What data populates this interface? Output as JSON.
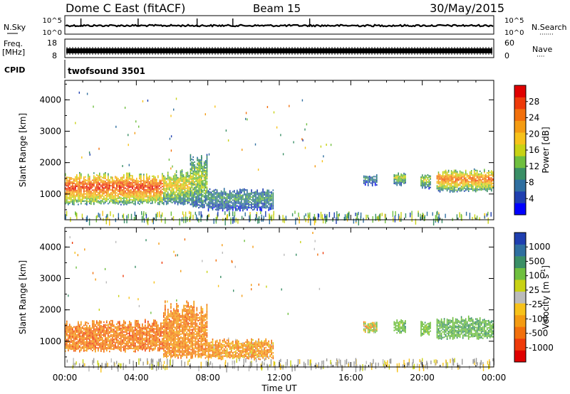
{
  "header": {
    "station": "Dome C East (fitACF)",
    "beam": "Beam 15",
    "date": "30/May/2015"
  },
  "strips": {
    "nsky": {
      "label": "N.Sky",
      "ticks_left": [
        "10^5",
        "10^0"
      ],
      "ticks_right": [
        "10^5",
        "10^0"
      ],
      "right_label": "N.Search",
      "right_dots": "·······"
    },
    "freq": {
      "label_top": "Freq.",
      "label_unit": "[MHz]",
      "ticks_left": [
        "18",
        "8"
      ],
      "ticks_right": [
        "60",
        "0"
      ],
      "right_label": "Nave",
      "right_dots": "····"
    },
    "cpid": {
      "label": "CPID",
      "value": "twofsound 3501"
    }
  },
  "colors": {
    "power_scale": [
      "#0000ff",
      "#1f3fb0",
      "#2f6fa0",
      "#3a8f66",
      "#6fbf3f",
      "#c8d214",
      "#f7c21a",
      "#f49b12",
      "#f2700c",
      "#ee3a0a",
      "#e00000"
    ],
    "velocity_scale": [
      "#e00000",
      "#ee3a0a",
      "#f2700c",
      "#f49b12",
      "#f7c21a",
      "#bbbbbb",
      "#c8d214",
      "#6fbf3f",
      "#3a8f66",
      "#2f6fa0",
      "#1f3fb0"
    ],
    "ground_scatter": "#999999"
  },
  "chart_data": [
    {
      "type": "heatmap",
      "name": "power",
      "ylabel": "Slant Range [km]",
      "xlabel": "Time UT",
      "x_ticks": [
        "00:00",
        "04:00",
        "08:00",
        "12:00",
        "16:00",
        "20:00",
        "00:00"
      ],
      "x_range_hours": [
        0,
        24
      ],
      "y_ticks": [
        1000,
        2000,
        3000,
        4000
      ],
      "y_range_km": [
        180,
        4620
      ],
      "colorbar": {
        "label": "Power [dB]",
        "ticks": [
          4,
          8,
          12,
          16,
          20,
          24,
          28
        ],
        "range": [
          0,
          32
        ]
      },
      "echo_regions": [
        {
          "t_start": 0.0,
          "t_end": 5.5,
          "r_low": 700,
          "r_high": 1700,
          "peak_value": 30
        },
        {
          "t_start": 5.5,
          "t_end": 7.0,
          "r_low": 700,
          "r_high": 1800,
          "peak_value": 20
        },
        {
          "t_start": 7.0,
          "t_end": 8.0,
          "r_low": 600,
          "r_high": 2300,
          "peak_value": 16
        },
        {
          "t_start": 8.0,
          "t_end": 11.7,
          "r_low": 500,
          "r_high": 1200,
          "peak_value": 10
        },
        {
          "t_start": 16.7,
          "t_end": 17.5,
          "r_low": 1300,
          "r_high": 1650,
          "peak_value": 8
        },
        {
          "t_start": 18.4,
          "t_end": 19.1,
          "r_low": 1300,
          "r_high": 1700,
          "peak_value": 16
        },
        {
          "t_start": 19.9,
          "t_end": 20.5,
          "r_low": 1200,
          "r_high": 1650,
          "peak_value": 16
        },
        {
          "t_start": 20.8,
          "t_end": 24.0,
          "r_low": 1100,
          "r_high": 1800,
          "peak_value": 26
        }
      ]
    },
    {
      "type": "heatmap",
      "name": "velocity",
      "ylabel": "Slant Range [km]",
      "xlabel": "Time UT",
      "x_ticks": [
        "00:00",
        "04:00",
        "08:00",
        "12:00",
        "16:00",
        "20:00",
        "00:00"
      ],
      "x_range_hours": [
        0,
        24
      ],
      "y_ticks": [
        1000,
        2000,
        3000,
        4000
      ],
      "y_range_km": [
        180,
        4620
      ],
      "colorbar": {
        "label": "Velocity [m s^-1]",
        "ticks": [
          "1000",
          "500",
          "100",
          "25",
          "-25",
          "-100",
          "-500",
          "-1000"
        ]
      },
      "echo_regions": [
        {
          "t_start": 0.0,
          "t_end": 5.5,
          "r_low": 700,
          "r_high": 1700,
          "peak_value": -400
        },
        {
          "t_start": 5.5,
          "t_end": 8.0,
          "r_low": 500,
          "r_high": 2300,
          "peak_value": -300
        },
        {
          "t_start": 8.0,
          "t_end": 11.7,
          "r_low": 450,
          "r_high": 1100,
          "peak_value": -200
        },
        {
          "t_start": 16.7,
          "t_end": 17.5,
          "r_low": 1300,
          "r_high": 1650,
          "peak_value": 50
        },
        {
          "t_start": 18.4,
          "t_end": 19.1,
          "r_low": 1300,
          "r_high": 1700,
          "peak_value": 300
        },
        {
          "t_start": 19.9,
          "t_end": 20.5,
          "r_low": 1200,
          "r_high": 1650,
          "peak_value": 300
        },
        {
          "t_start": 20.8,
          "t_end": 24.0,
          "r_low": 1100,
          "r_high": 1800,
          "peak_value": 400
        }
      ]
    }
  ]
}
